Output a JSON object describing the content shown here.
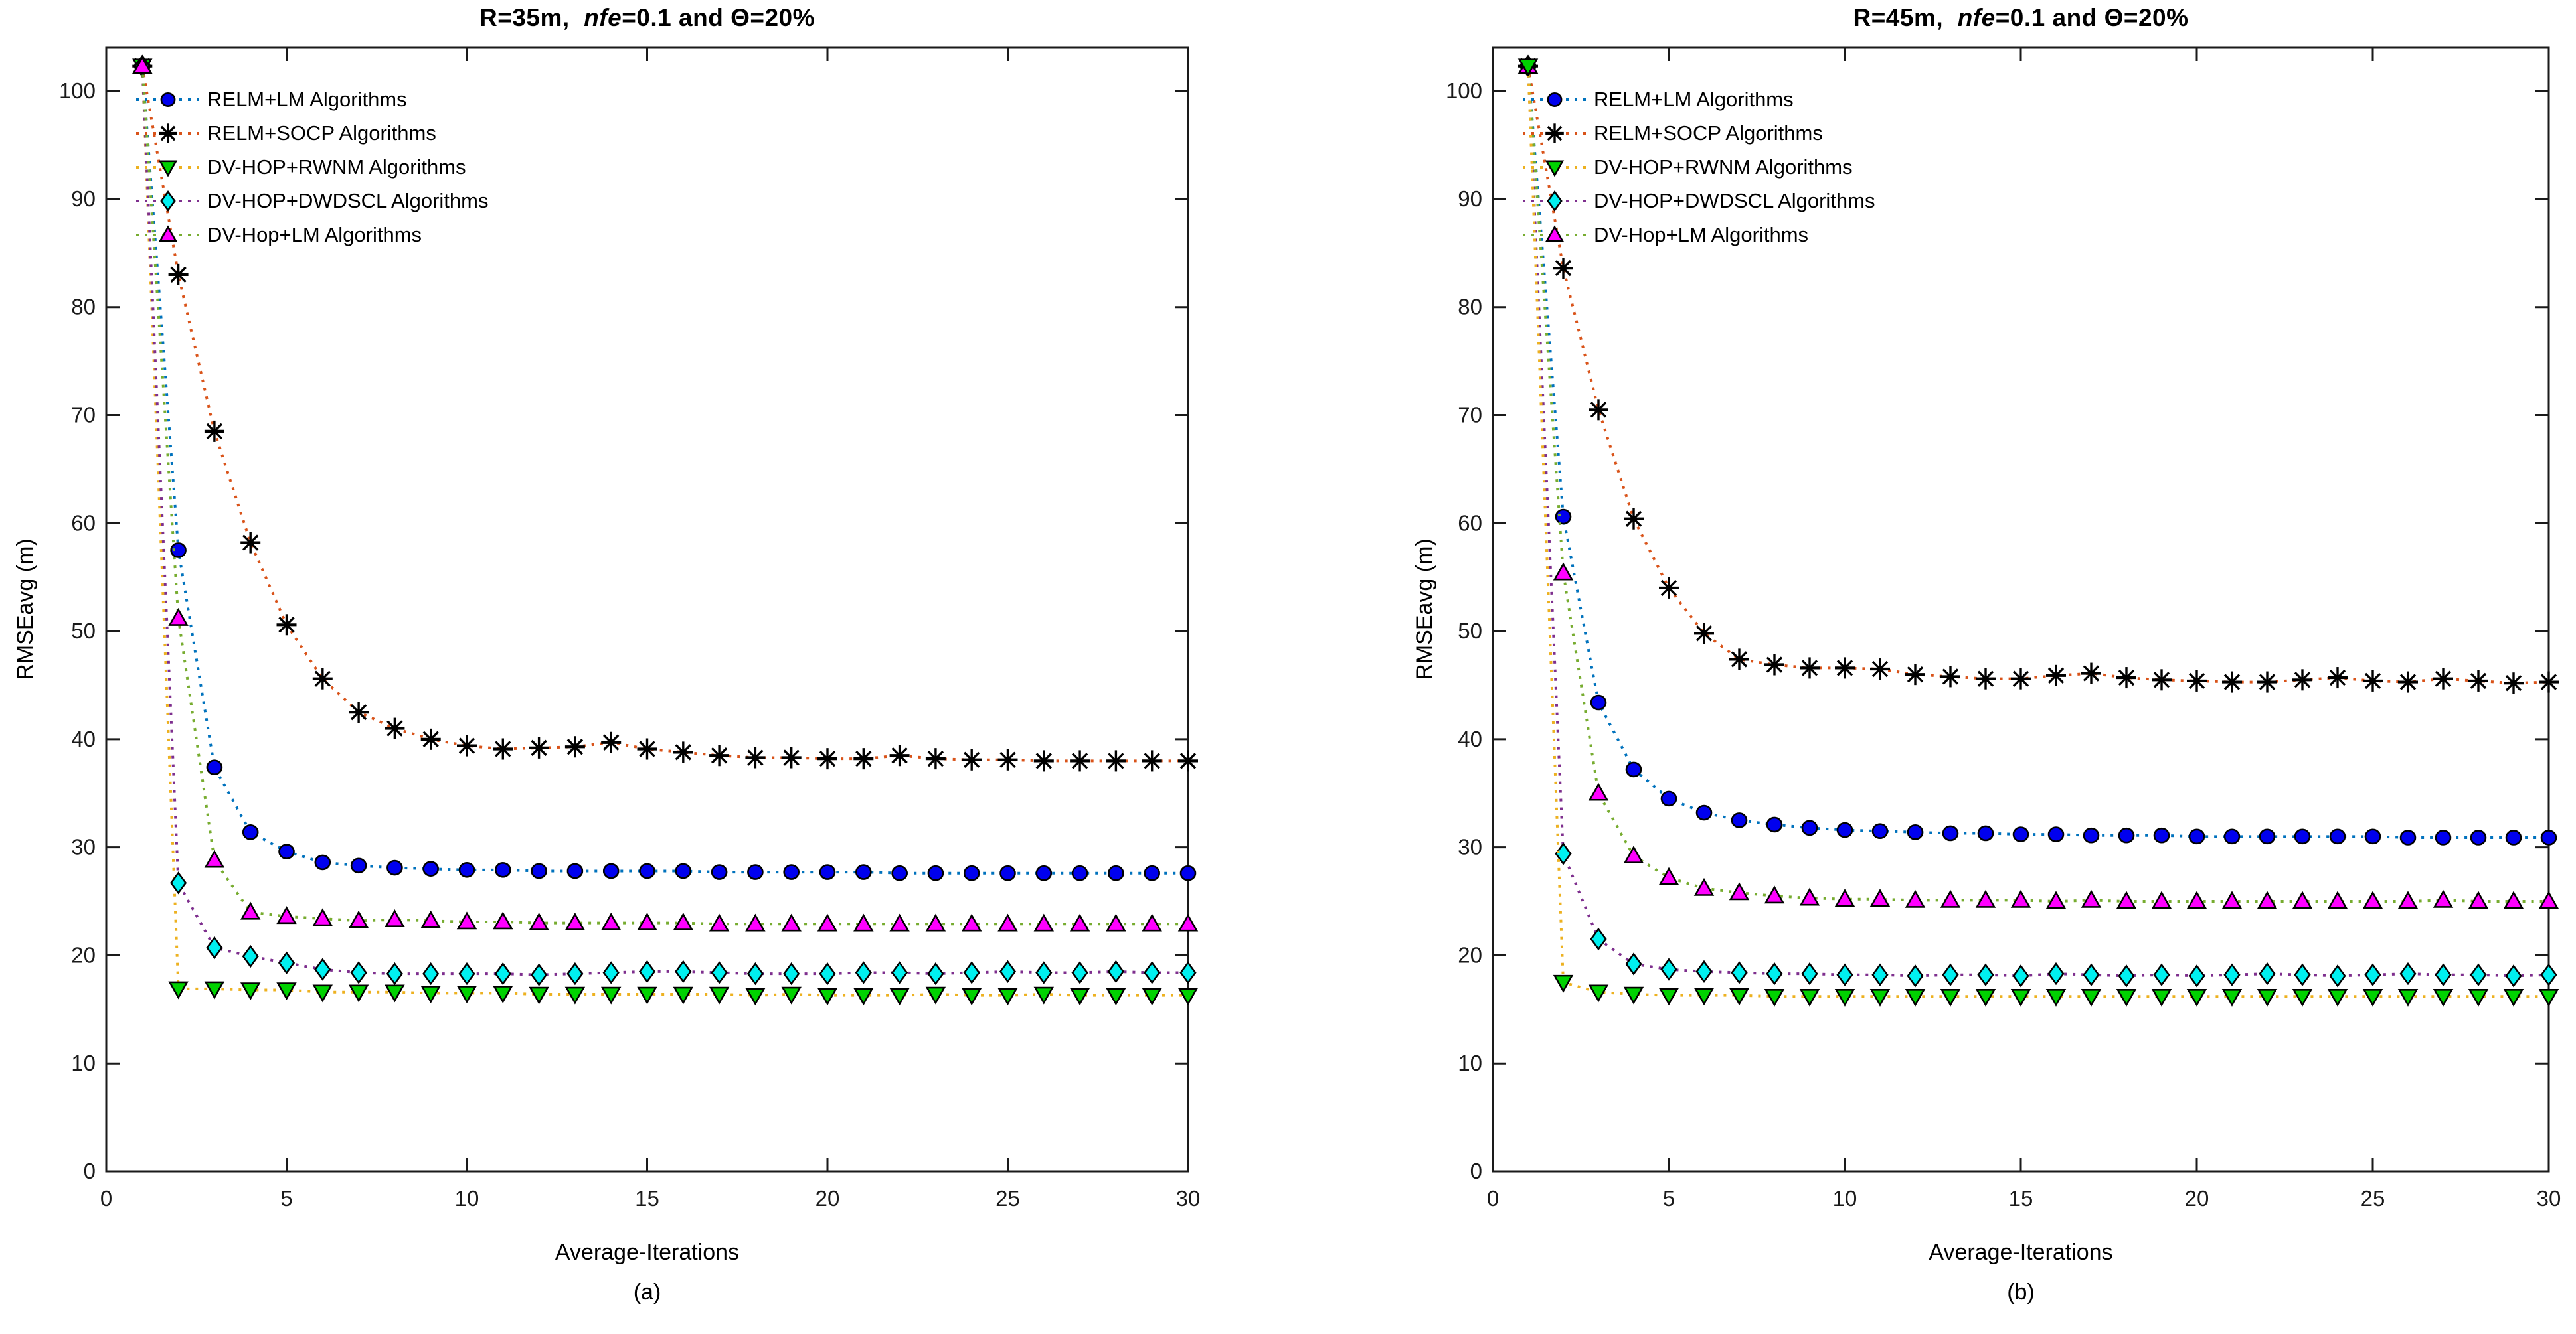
{
  "figure": {
    "background": "#ffffff",
    "axis_color": "#1a1a1a",
    "marker_edge_color": "#000000"
  },
  "chart_data": [
    {
      "type": "line",
      "panel": "a",
      "title_parts": [
        "R=35m,  ",
        "nfe",
        "=0.1 and Θ=20%"
      ],
      "sublabel": "(a)",
      "xlabel": "Average-Iterations",
      "ylabel": "RMSEavg (m)",
      "xlim": [
        0,
        30
      ],
      "ylim": [
        0,
        104
      ],
      "xticks": [
        0,
        5,
        10,
        15,
        20,
        25,
        30
      ],
      "yticks": [
        0,
        10,
        20,
        30,
        40,
        50,
        60,
        70,
        80,
        90,
        100
      ],
      "grid": false,
      "legend_position": "top-left",
      "x": [
        1,
        2,
        3,
        4,
        5,
        6,
        7,
        8,
        9,
        10,
        11,
        12,
        13,
        14,
        15,
        16,
        17,
        18,
        19,
        20,
        21,
        22,
        23,
        24,
        25,
        26,
        27,
        28,
        29,
        30
      ],
      "series": [
        {
          "name": "RELM+LM Algorithms",
          "line_color": "#0072BD",
          "marker": "circle",
          "marker_color": "#0000EE",
          "values": [
            102.3,
            57.5,
            37.4,
            31.4,
            29.6,
            28.6,
            28.3,
            28.1,
            28.0,
            27.9,
            27.9,
            27.8,
            27.8,
            27.8,
            27.8,
            27.8,
            27.7,
            27.7,
            27.7,
            27.7,
            27.7,
            27.6,
            27.6,
            27.6,
            27.6,
            27.6,
            27.6,
            27.6,
            27.6,
            27.6
          ]
        },
        {
          "name": "RELM+SOCP Algorithms",
          "line_color": "#D95319",
          "marker": "asterisk",
          "marker_color": "#000000",
          "values": [
            102.3,
            83.0,
            68.5,
            58.2,
            50.6,
            45.6,
            42.5,
            41.0,
            40.0,
            39.4,
            39.1,
            39.2,
            39.3,
            39.7,
            39.1,
            38.8,
            38.5,
            38.3,
            38.3,
            38.2,
            38.2,
            38.5,
            38.2,
            38.1,
            38.1,
            38.0,
            38.0,
            38.0,
            38.0,
            38.0
          ]
        },
        {
          "name": "DV-HOP+RWNM Algorithms",
          "line_color": "#EDB120",
          "marker": "triangle-down",
          "marker_color": "#00D200",
          "values": [
            102.3,
            16.9,
            16.9,
            16.8,
            16.8,
            16.6,
            16.6,
            16.6,
            16.5,
            16.5,
            16.5,
            16.4,
            16.4,
            16.4,
            16.4,
            16.4,
            16.4,
            16.3,
            16.4,
            16.3,
            16.3,
            16.3,
            16.4,
            16.3,
            16.3,
            16.4,
            16.3,
            16.3,
            16.3,
            16.3
          ]
        },
        {
          "name": "DV-HOP+DWDSCL Algorithms",
          "line_color": "#7E2F8E",
          "marker": "diamond",
          "marker_color": "#00F0F0",
          "values": [
            102.3,
            26.7,
            20.7,
            19.9,
            19.3,
            18.7,
            18.4,
            18.3,
            18.3,
            18.3,
            18.3,
            18.2,
            18.3,
            18.4,
            18.5,
            18.5,
            18.4,
            18.3,
            18.3,
            18.3,
            18.4,
            18.4,
            18.3,
            18.4,
            18.5,
            18.4,
            18.4,
            18.5,
            18.4,
            18.4
          ]
        },
        {
          "name": "DV-Hop+LM Algorithms",
          "line_color": "#77AC30",
          "marker": "triangle-up",
          "marker_color": "#FF00FF",
          "values": [
            102.3,
            51.2,
            28.8,
            24.0,
            23.6,
            23.4,
            23.2,
            23.3,
            23.2,
            23.1,
            23.1,
            23.0,
            23.0,
            23.0,
            23.0,
            23.0,
            22.9,
            22.9,
            22.9,
            22.9,
            22.9,
            22.9,
            22.9,
            22.9,
            22.9,
            22.9,
            22.9,
            22.9,
            22.9,
            22.9
          ]
        }
      ],
      "draw_order": [
        0,
        1,
        2,
        3,
        4
      ]
    },
    {
      "type": "line",
      "panel": "b",
      "title_parts": [
        "R=45m,  ",
        "nfe",
        "=0.1 and Θ=20%"
      ],
      "sublabel": "(b)",
      "xlabel": "Average-Iterations",
      "ylabel": "RMSEavg (m)",
      "xlim": [
        0,
        30
      ],
      "ylim": [
        0,
        104
      ],
      "xticks": [
        0,
        5,
        10,
        15,
        20,
        25,
        30
      ],
      "yticks": [
        0,
        10,
        20,
        30,
        40,
        50,
        60,
        70,
        80,
        90,
        100
      ],
      "grid": false,
      "legend_position": "top-left",
      "x": [
        1,
        2,
        3,
        4,
        5,
        6,
        7,
        8,
        9,
        10,
        11,
        12,
        13,
        14,
        15,
        16,
        17,
        18,
        19,
        20,
        21,
        22,
        23,
        24,
        25,
        26,
        27,
        28,
        29,
        30
      ],
      "series": [
        {
          "name": "RELM+LM Algorithms",
          "line_color": "#0072BD",
          "marker": "circle",
          "marker_color": "#0000EE",
          "values": [
            102.3,
            60.6,
            43.4,
            37.2,
            34.5,
            33.2,
            32.5,
            32.1,
            31.8,
            31.6,
            31.5,
            31.4,
            31.3,
            31.3,
            31.2,
            31.2,
            31.1,
            31.1,
            31.1,
            31.0,
            31.0,
            31.0,
            31.0,
            31.0,
            31.0,
            30.9,
            30.9,
            30.9,
            30.9,
            30.9
          ]
        },
        {
          "name": "RELM+SOCP Algorithms",
          "line_color": "#D95319",
          "marker": "asterisk",
          "marker_color": "#000000",
          "values": [
            102.3,
            83.6,
            70.5,
            60.4,
            54.0,
            49.8,
            47.4,
            46.9,
            46.6,
            46.6,
            46.5,
            46.0,
            45.8,
            45.6,
            45.6,
            45.9,
            46.1,
            45.7,
            45.5,
            45.4,
            45.3,
            45.3,
            45.5,
            45.7,
            45.4,
            45.3,
            45.6,
            45.4,
            45.2,
            45.3
          ]
        },
        {
          "name": "DV-HOP+RWNM Algorithms",
          "line_color": "#EDB120",
          "marker": "triangle-down",
          "marker_color": "#00D200",
          "values": [
            102.3,
            17.5,
            16.6,
            16.4,
            16.3,
            16.3,
            16.3,
            16.2,
            16.2,
            16.2,
            16.2,
            16.2,
            16.2,
            16.2,
            16.2,
            16.2,
            16.2,
            16.2,
            16.2,
            16.2,
            16.2,
            16.2,
            16.2,
            16.2,
            16.2,
            16.2,
            16.2,
            16.2,
            16.2,
            16.2
          ]
        },
        {
          "name": "DV-HOP+DWDSCL Algorithms",
          "line_color": "#7E2F8E",
          "marker": "diamond",
          "marker_color": "#00F0F0",
          "values": [
            102.3,
            29.4,
            21.5,
            19.2,
            18.7,
            18.5,
            18.4,
            18.3,
            18.3,
            18.2,
            18.2,
            18.1,
            18.2,
            18.2,
            18.1,
            18.3,
            18.2,
            18.1,
            18.2,
            18.1,
            18.2,
            18.3,
            18.2,
            18.1,
            18.2,
            18.3,
            18.2,
            18.2,
            18.1,
            18.2
          ]
        },
        {
          "name": "DV-Hop+LM Algorithms",
          "line_color": "#77AC30",
          "marker": "triangle-up",
          "marker_color": "#FF00FF",
          "values": [
            102.3,
            55.4,
            35.0,
            29.2,
            27.2,
            26.2,
            25.8,
            25.5,
            25.3,
            25.2,
            25.2,
            25.1,
            25.1,
            25.1,
            25.1,
            25.0,
            25.1,
            25.0,
            25.0,
            25.0,
            25.0,
            25.0,
            25.0,
            25.0,
            25.0,
            25.0,
            25.1,
            25.0,
            25.0,
            25.0
          ]
        }
      ],
      "draw_order": [
        0,
        1,
        3,
        4,
        2
      ]
    }
  ]
}
